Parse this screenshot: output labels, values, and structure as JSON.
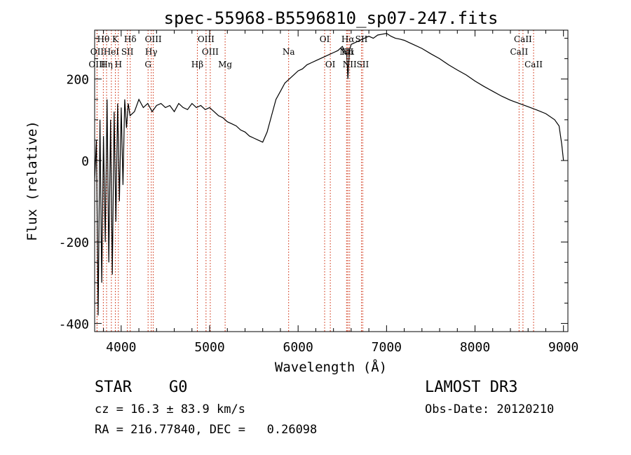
{
  "chart_data": {
    "type": "line",
    "title": "spec-55968-B5596810_sp07-247.fits",
    "xlabel": "Wavelength (Å)",
    "ylabel": "Flux (relative)",
    "xlim": [
      3700,
      9050
    ],
    "ylim": [
      -420,
      320
    ],
    "xticks": [
      4000,
      5000,
      6000,
      7000,
      8000,
      9000
    ],
    "yticks": [
      -400,
      -200,
      0,
      200
    ],
    "series": [
      {
        "name": "flux",
        "x": [
          3700,
          3720,
          3740,
          3760,
          3780,
          3800,
          3820,
          3840,
          3860,
          3880,
          3900,
          3920,
          3940,
          3960,
          3980,
          4000,
          4020,
          4040,
          4060,
          4080,
          4100,
          4150,
          4200,
          4250,
          4300,
          4350,
          4400,
          4450,
          4500,
          4550,
          4600,
          4650,
          4700,
          4750,
          4800,
          4850,
          4900,
          4950,
          5000,
          5050,
          5100,
          5150,
          5200,
          5250,
          5300,
          5350,
          5400,
          5450,
          5500,
          5550,
          5600,
          5650,
          5700,
          5750,
          5800,
          5850,
          5900,
          5950,
          6000,
          6050,
          6100,
          6150,
          6200,
          6250,
          6300,
          6350,
          6400,
          6450,
          6500,
          6550,
          6563,
          6580,
          6600,
          6650,
          6700,
          6750,
          6800,
          6850,
          6900,
          6950,
          7000,
          7050,
          7100,
          7150,
          7200,
          7250,
          7300,
          7400,
          7500,
          7600,
          7700,
          7800,
          7900,
          8000,
          8100,
          8200,
          8300,
          8400,
          8500,
          8600,
          8700,
          8800,
          8900,
          8950,
          8980,
          9000
        ],
        "y": [
          -50,
          50,
          -380,
          100,
          -300,
          60,
          -200,
          150,
          -250,
          100,
          -280,
          120,
          -150,
          140,
          -100,
          130,
          -60,
          150,
          80,
          140,
          110,
          120,
          150,
          130,
          140,
          120,
          135,
          140,
          130,
          135,
          120,
          140,
          130,
          125,
          140,
          130,
          135,
          125,
          130,
          120,
          110,
          105,
          95,
          90,
          85,
          75,
          70,
          60,
          55,
          50,
          45,
          70,
          110,
          150,
          170,
          190,
          200,
          210,
          220,
          225,
          235,
          240,
          245,
          250,
          255,
          260,
          265,
          270,
          280,
          260,
          200,
          270,
          285,
          290,
          295,
          300,
          305,
          300,
          308,
          310,
          312,
          305,
          300,
          298,
          295,
          290,
          285,
          275,
          262,
          250,
          235,
          222,
          210,
          195,
          182,
          170,
          158,
          148,
          140,
          132,
          124,
          115,
          100,
          85,
          40,
          0
        ]
      }
    ],
    "lines": [
      {
        "name": "Hθ",
        "wl": 3798,
        "row": 1
      },
      {
        "name": "OII",
        "wl": 3727,
        "row": 2
      },
      {
        "name": "OIII",
        "wl": 3727,
        "row": 3
      },
      {
        "name": "K",
        "wl": 3934,
        "row": 1
      },
      {
        "name": "HeI",
        "wl": 3889,
        "row": 2
      },
      {
        "name": "Hη",
        "wl": 3835,
        "row": 3
      },
      {
        "name": "Hδ",
        "wl": 4102,
        "row": 1
      },
      {
        "name": "SII",
        "wl": 4070,
        "row": 2
      },
      {
        "name": "H",
        "wl": 3968,
        "row": 3
      },
      {
        "name": "OIII",
        "wl": 4363,
        "row": 1
      },
      {
        "name": "Hγ",
        "wl": 4340,
        "row": 2
      },
      {
        "name": "G",
        "wl": 4304,
        "row": 3
      },
      {
        "name": "OIII",
        "wl": 4959,
        "row": 1
      },
      {
        "name": "OIII",
        "wl": 5007,
        "row": 2
      },
      {
        "name": "Hβ",
        "wl": 4861,
        "row": 3
      },
      {
        "name": "Mg",
        "wl": 5175,
        "row": 3
      },
      {
        "name": "Na",
        "wl": 5893,
        "row": 2
      },
      {
        "name": "OI",
        "wl": 6300,
        "row": 1
      },
      {
        "name": "OI",
        "wl": 6364,
        "row": 3
      },
      {
        "name": "Hα",
        "wl": 6563,
        "row": 1
      },
      {
        "name": "SII",
        "wl": 6716,
        "row": 1
      },
      {
        "name": "NII",
        "wl": 6548,
        "row": 2
      },
      {
        "name": "Hα",
        "wl": 6563,
        "row": 2
      },
      {
        "name": "NII",
        "wl": 6583,
        "row": 3
      },
      {
        "name": "SII",
        "wl": 6731,
        "row": 3
      },
      {
        "name": "CaII",
        "wl": 8542,
        "row": 1
      },
      {
        "name": "CaII",
        "wl": 8498,
        "row": 2
      },
      {
        "name": "CaII",
        "wl": 8662,
        "row": 3
      }
    ]
  },
  "info": {
    "class": "STAR",
    "subclass": "G0",
    "survey": "LAMOST DR3",
    "cz": "cz = 16.3 ± 83.9 km/s",
    "obs_date": "Obs-Date: 20120210",
    "coords": "RA = 216.77840, DEC =   0.26098"
  },
  "colors": {
    "line_marker": "#cc2200",
    "spectrum": "#000000"
  }
}
